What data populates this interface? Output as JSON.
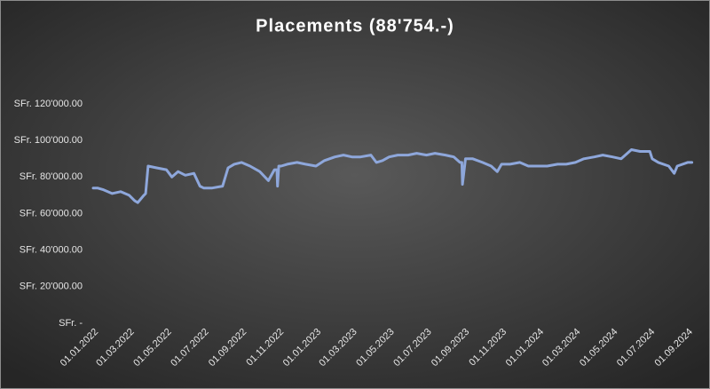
{
  "chart_data": {
    "type": "line",
    "title": "Placements (88'754.-)",
    "color": "#8ea7db",
    "x": [
      "01.01.2022",
      "08.01.2022",
      "18.01.2022",
      "01.02.2022",
      "15.02.2022",
      "01.03.2022",
      "10.03.2022",
      "15.03.2022",
      "25.03.2022",
      "28.03.2022",
      "01.04.2022",
      "15.04.2022",
      "01.05.2022",
      "10.05.2022",
      "20.05.2022",
      "01.06.2022",
      "15.06.2022",
      "25.06.2022",
      "01.07.2022",
      "15.07.2022",
      "01.08.2022",
      "10.08.2022",
      "20.08.2022",
      "01.09.2022",
      "15.09.2022",
      "01.10.2022",
      "15.10.2022",
      "25.10.2022",
      "29.10.2022",
      "30.10.2022",
      "01.11.2022",
      "05.11.2022",
      "15.11.2022",
      "01.12.2022",
      "15.12.2022",
      "01.01.2023",
      "15.01.2023",
      "01.02.2023",
      "15.02.2023",
      "01.03.2023",
      "15.03.2023",
      "01.04.2023",
      "10.04.2023",
      "20.04.2023",
      "01.05.2023",
      "15.05.2023",
      "01.06.2023",
      "15.06.2023",
      "01.07.2023",
      "15.07.2023",
      "01.08.2023",
      "15.08.2023",
      "25.08.2023",
      "28.08.2023",
      "29.08.2023",
      "03.09.2023",
      "15.09.2023",
      "01.10.2023",
      "15.10.2023",
      "25.10.2023",
      "01.11.2023",
      "15.11.2023",
      "01.12.2023",
      "15.12.2023",
      "01.01.2024",
      "15.01.2024",
      "01.02.2024",
      "15.02.2024",
      "01.03.2024",
      "15.03.2024",
      "01.04.2024",
      "15.04.2024",
      "01.05.2024",
      "15.05.2024",
      "01.06.2024",
      "15.06.2024",
      "01.07.2024",
      "05.07.2024",
      "15.07.2024",
      "01.08.2024",
      "10.08.2024",
      "15.08.2024",
      "01.09.2024",
      "08.09.2024"
    ],
    "values": [
      74000,
      74000,
      73000,
      71000,
      72000,
      70000,
      67000,
      66000,
      70000,
      71000,
      86000,
      85000,
      84000,
      80000,
      83000,
      81000,
      82000,
      75000,
      74000,
      74000,
      75000,
      85000,
      87000,
      88000,
      86000,
      83000,
      78000,
      84000,
      84000,
      75000,
      86000,
      86000,
      87000,
      88000,
      87000,
      86000,
      89000,
      91000,
      92000,
      91000,
      91000,
      92000,
      88000,
      89000,
      91000,
      92000,
      92000,
      93000,
      92000,
      93000,
      92000,
      91000,
      88000,
      88000,
      76000,
      90000,
      90000,
      88000,
      86000,
      83000,
      87000,
      87000,
      88000,
      86000,
      86000,
      86000,
      87000,
      87000,
      88000,
      90000,
      91000,
      92000,
      91000,
      90000,
      95000,
      94000,
      94000,
      90000,
      88000,
      86000,
      82000,
      86000,
      88000,
      88000
    ],
    "ylim": [
      0,
      120000
    ],
    "yticks": [
      {
        "value": 0,
        "label": "SFr. -"
      },
      {
        "value": 20000,
        "label": "SFr. 20'000.00"
      },
      {
        "value": 40000,
        "label": "SFr. 40'000.00"
      },
      {
        "value": 60000,
        "label": "SFr. 60'000.00"
      },
      {
        "value": 80000,
        "label": "SFr. 80'000.00"
      },
      {
        "value": 100000,
        "label": "SFr. 100'000.00"
      },
      {
        "value": 120000,
        "label": "SFr. 120'000.00"
      }
    ],
    "xlim": [
      "01.01.2022",
      "10.09.2024"
    ],
    "xticks": [
      "01.01.2022",
      "01.03.2022",
      "01.05.2022",
      "01.07.2022",
      "01.09.2022",
      "01.11.2022",
      "01.01.2023",
      "01.03.2023",
      "01.05.2023",
      "01.07.2023",
      "01.09.2023",
      "01.11.2023",
      "01.01.2024",
      "01.03.2024",
      "01.05.2024",
      "01.07.2024",
      "01.09.2024"
    ]
  }
}
